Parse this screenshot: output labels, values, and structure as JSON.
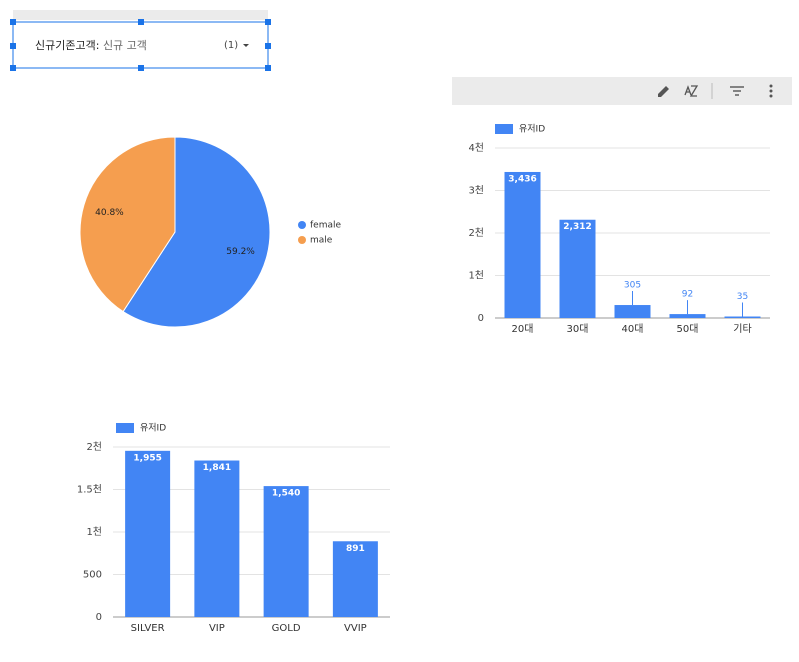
{
  "filter": {
    "label": "신규기존고객",
    "value": "신규 고객",
    "count": "(1)"
  },
  "chart_data": [
    {
      "type": "pie",
      "categories": [
        "female",
        "male"
      ],
      "values": [
        59.2,
        40.8
      ],
      "value_labels": [
        "59.2%",
        "40.8%"
      ],
      "colors": [
        "#4285f4",
        "#f59e4f"
      ],
      "legend": "right"
    },
    {
      "type": "bar",
      "categories": [
        "20대",
        "30대",
        "40대",
        "50대",
        "기타"
      ],
      "series": [
        {
          "name": "유저ID",
          "color": "#4285f4",
          "values": [
            3436,
            2312,
            305,
            92,
            35
          ],
          "value_labels": [
            "3,436",
            "2,312",
            "305",
            "92",
            "35"
          ]
        }
      ],
      "ylim": [
        0,
        4000
      ],
      "yticks": [
        0,
        {
          "value": 1000,
          "label": "1천"
        },
        {
          "value": 2000,
          "label": "2천"
        },
        {
          "value": 3000,
          "label": "3천"
        },
        {
          "value": 4000,
          "label": "4천"
        }
      ],
      "grid": true,
      "legend": "top-left"
    },
    {
      "type": "bar",
      "categories": [
        "SILVER",
        "VIP",
        "GOLD",
        "VVIP"
      ],
      "series": [
        {
          "name": "유저ID",
          "color": "#4285f4",
          "values": [
            1955,
            1841,
            1540,
            891
          ],
          "value_labels": [
            "1,955",
            "1,841",
            "1,540",
            "891"
          ]
        }
      ],
      "ylim": [
        0,
        2000
      ],
      "yticks": [
        0,
        500,
        {
          "value": 1000,
          "label": "1천"
        },
        {
          "value": 1500,
          "label": "1.5천"
        },
        {
          "value": 2000,
          "label": "2천"
        }
      ],
      "grid": true,
      "legend": "top-left"
    }
  ]
}
